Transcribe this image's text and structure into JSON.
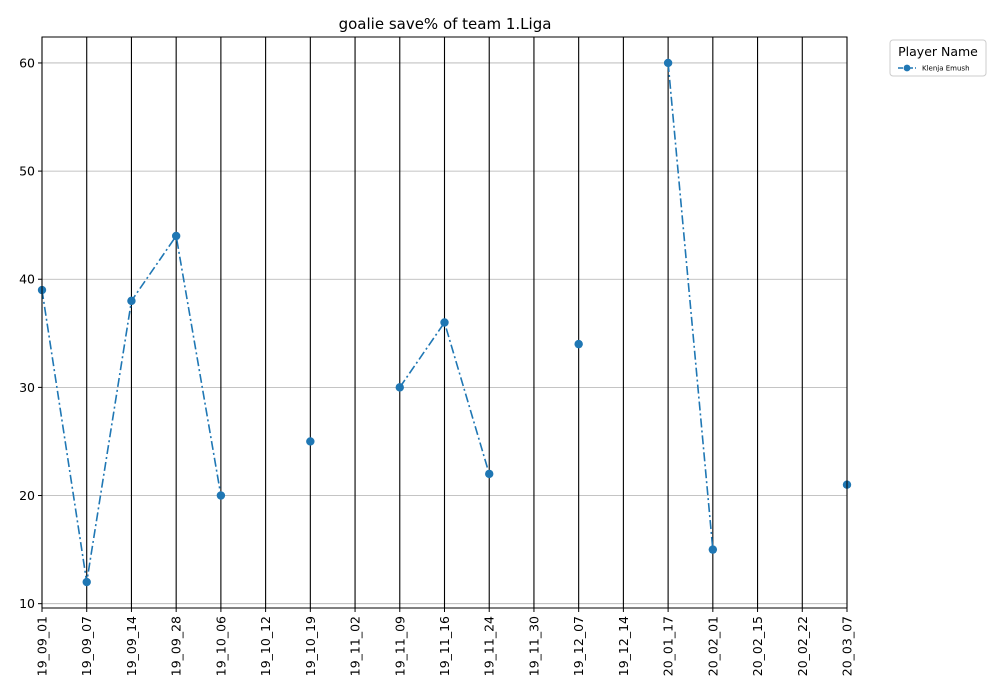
{
  "chart_data": {
    "type": "line",
    "title": "goalie save% of team 1.Liga",
    "xlabel": "",
    "ylabel": "",
    "categories": [
      "19_09_01",
      "19_09_07",
      "19_09_14",
      "19_09_28",
      "19_10_06",
      "19_10_12",
      "19_10_19",
      "19_11_02",
      "19_11_09",
      "19_11_16",
      "19_11_24",
      "19_11_30",
      "19_12_07",
      "19_12_14",
      "20_01_17",
      "20_02_01",
      "20_02_15",
      "20_02_22",
      "20_03_07"
    ],
    "ylim": [
      9.6,
      62.4
    ],
    "yticks": [
      10,
      20,
      30,
      40,
      50,
      60
    ],
    "grid": {
      "y": true,
      "x": true
    },
    "legend": {
      "title": "Player Name",
      "placement": "outside-top-right"
    },
    "series": [
      {
        "name": "Klenja Emush",
        "color": "#1f77b4",
        "linestyle": "dashdot",
        "marker": "circle",
        "values": [
          39,
          12,
          38,
          44,
          20,
          null,
          25,
          null,
          30,
          36,
          22,
          null,
          34,
          null,
          60,
          15,
          null,
          null,
          21
        ]
      }
    ]
  }
}
